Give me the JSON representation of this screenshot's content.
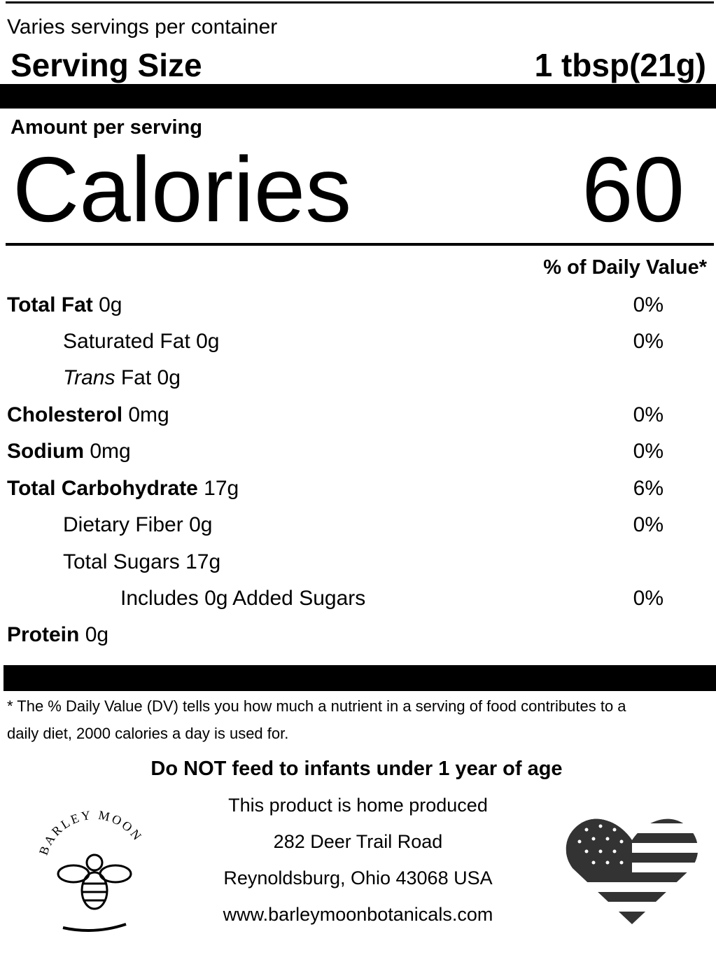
{
  "servings": "Varies servings per container",
  "serving_size": {
    "label": "Serving Size",
    "value": "1 tbsp(21g)"
  },
  "amount_per_serving": "Amount per serving",
  "calories": {
    "label": "Calories",
    "value": "60"
  },
  "daily_value_header": "% of Daily Value*",
  "rows": [
    {
      "label": "Total Fat",
      "amount": "0g",
      "dv": "0%"
    },
    {
      "label": "Saturated Fat",
      "amount": "0g",
      "dv": "0%"
    },
    {
      "italic": "Trans",
      "label": "Fat",
      "amount": "0g"
    },
    {
      "label": "Cholesterol",
      "amount": "0mg",
      "dv": "0%"
    },
    {
      "label": "Sodium",
      "amount": "0mg",
      "dv": "0%"
    },
    {
      "label": "Total Carbohydrate",
      "amount": "17g",
      "dv": "6%"
    },
    {
      "label": "Dietary Fiber",
      "amount": "0g",
      "dv": "0%"
    },
    {
      "label": "Total Sugars",
      "amount": "17g"
    },
    {
      "label": "Includes 0g Added Sugars",
      "dv": "0%"
    },
    {
      "label": "Protein",
      "amount": "0g"
    }
  ],
  "footnote": [
    "* The % Daily Value (DV) tells you how much a nutrient in a serving of food contributes to a",
    "daily diet, 2000 calories a day is used for."
  ],
  "warning": "Do NOT feed to infants under 1 year of age",
  "producer": [
    "This product is home produced",
    "282 Deer Trail Road",
    "Reynoldsburg, Ohio 43068 USA",
    "www.barleymoonbotanicals.com"
  ],
  "logo_text": "BARLEY MOON"
}
